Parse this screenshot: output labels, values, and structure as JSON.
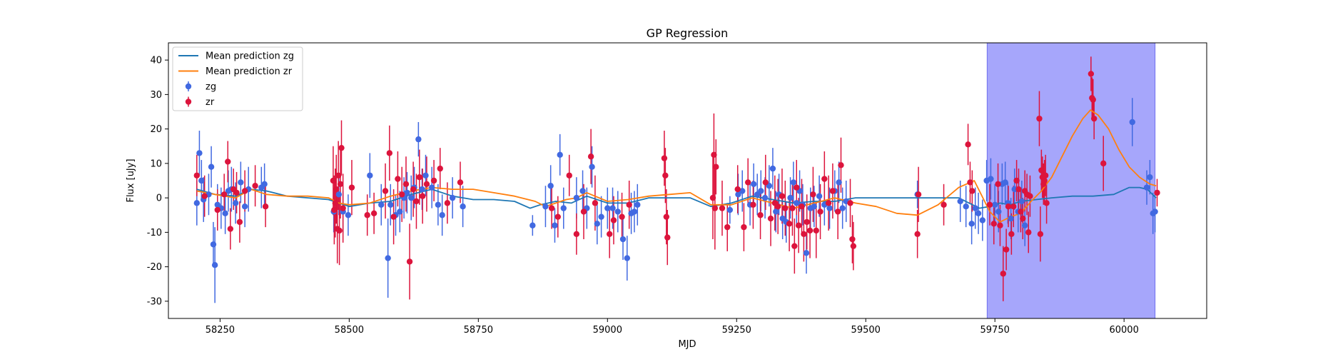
{
  "chart_data": {
    "type": "scatter",
    "title": "GP Regression",
    "xlabel": "MJD",
    "ylabel": "Flux [uJy]",
    "xlim": [
      58150,
      60160
    ],
    "ylim": [
      -35,
      45
    ],
    "xticks": [
      58250,
      58500,
      58750,
      59000,
      59250,
      59500,
      59750,
      60000
    ],
    "yticks": [
      -30,
      -20,
      -10,
      0,
      10,
      20,
      30,
      40
    ],
    "grid": false,
    "legend_position": "top-left",
    "shaded_region": {
      "x_start": 59735,
      "x_end": 60060,
      "color": "#a6a6fb"
    },
    "colors": {
      "zg_line": "#1f77b4",
      "zr_line": "#ff7f0e",
      "zg_points": "#4169e1",
      "zr_points": "#dc143c"
    },
    "legend": [
      {
        "kind": "line",
        "label": "Mean prediction zg",
        "color": "#1f77b4"
      },
      {
        "kind": "line",
        "label": "Mean prediction zr",
        "color": "#ff7f0e"
      },
      {
        "kind": "marker",
        "label": "zg",
        "color": "#4169e1"
      },
      {
        "kind": "marker",
        "label": "zr",
        "color": "#dc143c"
      }
    ],
    "lines": [
      {
        "name": "Mean prediction zg",
        "x": [
          58205,
          58240,
          58280,
          58310,
          58340,
          58380,
          58420,
          58460,
          58500,
          58540,
          58580,
          58620,
          58660,
          58700,
          58740,
          58780,
          58820,
          58850,
          58870,
          58900,
          58930,
          58960,
          59000,
          59040,
          59080,
          59120,
          59160,
          59200,
          59240,
          59280,
          59320,
          59360,
          59400,
          59440,
          59480,
          59520,
          59560,
          59600,
          59640,
          59680,
          59700,
          59720,
          59740,
          59760,
          59780,
          59800,
          59830,
          59860,
          59900,
          59940,
          59980,
          60010,
          60030,
          60045,
          60055,
          60062
        ],
        "y": [
          2.5,
          1.0,
          0.5,
          2.5,
          2.0,
          0.5,
          0.0,
          -0.5,
          -2.5,
          -1.5,
          -1.0,
          1.0,
          2.5,
          0.5,
          -0.5,
          -0.5,
          -1.0,
          -3.0,
          -2.0,
          -1.0,
          -1.5,
          0.5,
          -1.5,
          -1.5,
          0.0,
          0.0,
          0.0,
          -2.5,
          -1.5,
          0.5,
          -0.5,
          -1.5,
          -1.0,
          -1.0,
          0.0,
          0.0,
          0.0,
          0.0,
          0.0,
          0.0,
          -1.5,
          -3.0,
          -2.5,
          -1.5,
          -2.0,
          -1.0,
          -0.5,
          0.0,
          0.5,
          0.5,
          1.0,
          3.0,
          3.0,
          2.5,
          1.0,
          0.0
        ]
      },
      {
        "name": "Mean prediction zr",
        "x": [
          58205,
          58240,
          58280,
          58310,
          58340,
          58380,
          58420,
          58460,
          58480,
          58500,
          58540,
          58580,
          58620,
          58660,
          58700,
          58740,
          58780,
          58820,
          58860,
          58880,
          58900,
          58920,
          58940,
          58960,
          59000,
          59040,
          59080,
          59120,
          59160,
          59200,
          59240,
          59280,
          59320,
          59360,
          59400,
          59440,
          59480,
          59520,
          59560,
          59600,
          59640,
          59680,
          59710,
          59740,
          59760,
          59780,
          59800,
          59820,
          59840,
          59860,
          59880,
          59900,
          59920,
          59935,
          59950,
          59970,
          59990,
          60010,
          60030,
          60050,
          60062
        ],
        "y": [
          2.0,
          1.0,
          0.0,
          2.5,
          1.0,
          0.5,
          0.5,
          0.0,
          -1.5,
          -2.0,
          -1.5,
          0.5,
          2.0,
          3.0,
          2.5,
          2.5,
          1.5,
          0.5,
          -1.0,
          -2.5,
          -1.5,
          -0.5,
          0.0,
          1.5,
          -1.0,
          -0.5,
          0.5,
          1.0,
          1.5,
          -2.0,
          -2.0,
          0.0,
          -1.5,
          -3.0,
          -1.5,
          0.0,
          -1.5,
          -2.5,
          -4.5,
          -5.0,
          -2.0,
          3.0,
          5.0,
          -4.0,
          -7.0,
          -5.5,
          -4.5,
          -1.0,
          2.0,
          6.0,
          12.0,
          18.0,
          23.0,
          25.5,
          24.0,
          20.0,
          14.0,
          9.0,
          6.0,
          4.0,
          3.5
        ]
      }
    ],
    "series": [
      {
        "name": "zg",
        "x": [
          58205,
          58210,
          58214,
          58218,
          58228,
          58233,
          58237,
          58240,
          58245,
          58252,
          58260,
          58266,
          58272,
          58280,
          58290,
          58298,
          58305,
          58330,
          58336,
          58470,
          58480,
          58488,
          58498,
          58540,
          58562,
          58575,
          58580,
          58590,
          58598,
          58606,
          58612,
          58620,
          58626,
          58634,
          58641,
          58648,
          58660,
          58672,
          58680,
          58700,
          58720,
          58855,
          58880,
          58890,
          58898,
          58908,
          58915,
          58940,
          58952,
          58960,
          58970,
          58980,
          58988,
          59000,
          59010,
          59020,
          59030,
          59038,
          59046,
          59052,
          59058,
          59237,
          59253,
          59261,
          59276,
          59283,
          59290,
          59297,
          59305,
          59313,
          59320,
          59326,
          59332,
          59339,
          59346,
          59354,
          59360,
          59366,
          59372,
          59378,
          59385,
          59393,
          59400,
          59410,
          59420,
          59430,
          59440,
          59448,
          59455,
          59462,
          59600,
          59683,
          59694,
          59705,
          59712,
          59718,
          59726,
          59734,
          59742,
          59750,
          59757,
          59764,
          59770,
          59775,
          59781,
          59788,
          59795,
          59802,
          59808,
          60016,
          60044,
          60050,
          60056,
          60060
        ],
        "y": [
          -1.5,
          13.0,
          5.0,
          -0.5,
          1.0,
          9.0,
          -13.5,
          -19.5,
          -2.0,
          -3.0,
          -4.5,
          2.0,
          2.5,
          -1.5,
          4.5,
          -2.5,
          2.5,
          3.0,
          4.0,
          -4.0,
          1.0,
          -4.0,
          -5.0,
          6.5,
          -2.0,
          -17.5,
          -2.0,
          -5.0,
          -4.0,
          0.0,
          1.5,
          0.0,
          3.0,
          17.0,
          2.5,
          6.5,
          3.0,
          -2.0,
          -5.0,
          0.0,
          -2.5,
          -8.0,
          -2.5,
          3.5,
          -8.0,
          12.5,
          -3.0,
          0.0,
          2.0,
          -3.0,
          9.0,
          -7.5,
          -5.5,
          -3.0,
          -3.0,
          -4.0,
          -12.0,
          -17.5,
          -4.5,
          -4.0,
          -2.0,
          -3.5,
          1.0,
          2.0,
          -2.0,
          4.0,
          1.0,
          2.0,
          0.0,
          3.5,
          8.5,
          -4.0,
          1.0,
          -6.0,
          -7.0,
          0.0,
          4.5,
          -1.5,
          2.0,
          -2.0,
          -16.0,
          -3.0,
          -2.5,
          0.5,
          -2.0,
          -3.0,
          2.0,
          4.5,
          -3.0,
          -1.0,
          1.0,
          -1.0,
          -2.5,
          -7.5,
          -3.0,
          -4.5,
          -6.5,
          5.0,
          5.5,
          -2.0,
          -4.0,
          4.0,
          4.5,
          -1.5,
          -6.0,
          2.5,
          -4.0,
          -1.0,
          -8.0,
          22.0,
          3.0,
          6.0,
          -4.5,
          -4.0
        ],
        "error": [
          6.5,
          6.5,
          6.0,
          6.5,
          6.0,
          6.0,
          6.5,
          11.0,
          6.0,
          6.0,
          6.0,
          6.0,
          6.5,
          6.0,
          6.0,
          6.0,
          6.5,
          6.0,
          6.0,
          6.0,
          6.0,
          6.0,
          6.0,
          6.5,
          6.0,
          11.5,
          6.0,
          6.0,
          6.0,
          6.0,
          6.0,
          6.5,
          6.0,
          5.0,
          6.0,
          6.0,
          6.0,
          6.0,
          6.0,
          6.0,
          6.0,
          3.0,
          6.0,
          6.0,
          5.0,
          6.0,
          6.0,
          6.0,
          6.0,
          6.0,
          6.0,
          6.0,
          6.0,
          6.0,
          6.0,
          6.0,
          6.0,
          6.5,
          6.0,
          6.0,
          6.0,
          4.0,
          6.0,
          6.0,
          6.0,
          6.0,
          6.0,
          6.0,
          6.0,
          6.0,
          6.0,
          6.0,
          6.0,
          6.0,
          6.0,
          6.0,
          6.0,
          6.0,
          6.0,
          6.0,
          6.0,
          6.0,
          6.0,
          6.0,
          6.0,
          6.0,
          6.0,
          6.0,
          6.0,
          6.0,
          4.0,
          6.0,
          6.0,
          6.0,
          6.0,
          6.0,
          6.0,
          6.0,
          6.0,
          6.0,
          6.0,
          6.0,
          6.0,
          6.0,
          6.0,
          6.0,
          6.0,
          6.0,
          6.0,
          7.0,
          5.0,
          5.0,
          6.0,
          6.0
        ]
      },
      {
        "name": "zr",
        "x": [
          58205,
          58220,
          58245,
          58258,
          58265,
          58270,
          58276,
          58282,
          58288,
          58298,
          58318,
          58338,
          58469,
          58471,
          58473,
          58475,
          58477,
          58479,
          58481,
          58483,
          58485,
          58488,
          58505,
          58535,
          58548,
          58570,
          58578,
          58586,
          58594,
          58602,
          58610,
          58617,
          58624,
          58630,
          58636,
          58642,
          58650,
          58664,
          58676,
          58690,
          58715,
          58892,
          58904,
          58926,
          58940,
          58954,
          58968,
          58976,
          59004,
          59012,
          59028,
          59042,
          59110,
          59112,
          59114,
          59116,
          59204,
          59206,
          59208,
          59210,
          59222,
          59232,
          59252,
          59264,
          59272,
          59282,
          59296,
          59306,
          59316,
          59324,
          59330,
          59338,
          59344,
          59352,
          59358,
          59362,
          59366,
          59370,
          59376,
          59380,
          59386,
          59392,
          59398,
          59404,
          59412,
          59420,
          59428,
          59436,
          59446,
          59452,
          59470,
          59474,
          59476,
          59600,
          59602,
          59651,
          59698,
          59702,
          59706,
          59740,
          59748,
          59756,
          59760,
          59766,
          59772,
          59776,
          59782,
          59786,
          59792,
          59796,
          59800,
          59804,
          59808,
          59812,
          59815,
          59818,
          59836,
          59838,
          59840,
          59842,
          59844,
          59846,
          59848,
          59850,
          59936,
          59938,
          59940,
          59942,
          59960,
          60064
        ],
        "y": [
          6.5,
          0.5,
          -3.5,
          1.0,
          10.5,
          -9.0,
          2.5,
          1.5,
          -7.0,
          2.0,
          3.5,
          -2.5,
          5.0,
          -3.5,
          -1.5,
          2.5,
          -9.0,
          6.5,
          -9.5,
          4.0,
          14.5,
          -3.0,
          3.0,
          -5.0,
          -4.5,
          2.0,
          13.0,
          -5.5,
          5.5,
          1.0,
          4.0,
          -18.5,
          2.5,
          -1.0,
          6.0,
          0.5,
          4.0,
          5.0,
          8.5,
          -1.5,
          4.5,
          -3.0,
          -5.5,
          6.5,
          -10.5,
          -4.0,
          12.0,
          -1.5,
          -10.5,
          -6.5,
          -5.5,
          -2.0,
          11.5,
          6.5,
          -5.5,
          -11.5,
          0.0,
          12.5,
          -3.0,
          9.0,
          -3.0,
          -8.5,
          2.5,
          -8.5,
          4.5,
          -2.0,
          -5.0,
          4.5,
          -6.0,
          -1.5,
          -2.5,
          0.5,
          -3.0,
          -7.5,
          -3.0,
          -14.0,
          3.0,
          -8.0,
          -2.5,
          -10.5,
          -7.0,
          -9.5,
          1.0,
          -9.5,
          -4.0,
          5.5,
          -1.5,
          2.0,
          -4.0,
          9.5,
          -1.5,
          -12.0,
          -14.0,
          -10.5,
          1.0,
          -2.0,
          15.5,
          4.5,
          2.0,
          -2.0,
          -7.5,
          4.0,
          -8.0,
          -22.0,
          -15.0,
          -2.5,
          -10.5,
          -2.5,
          5.0,
          2.5,
          -4.0,
          -6.0,
          2.0,
          1.0,
          -10.0,
          0.5,
          23.0,
          -10.5,
          8.0,
          6.0,
          4.0,
          5.0,
          6.5,
          -1.5,
          36.0,
          29.0,
          28.5,
          23.0,
          10.0,
          1.5
        ],
        "error": [
          6.0,
          6.0,
          6.0,
          6.0,
          6.0,
          6.0,
          6.0,
          6.0,
          6.0,
          6.0,
          6.0,
          6.0,
          10.0,
          10.0,
          10.0,
          10.0,
          10.0,
          10.0,
          10.0,
          10.0,
          8.0,
          10.0,
          8.0,
          6.0,
          6.0,
          8.0,
          8.0,
          8.0,
          8.0,
          8.0,
          8.0,
          11.0,
          8.0,
          8.0,
          8.0,
          8.0,
          8.0,
          6.0,
          6.0,
          6.0,
          6.0,
          6.0,
          6.0,
          6.0,
          6.0,
          8.0,
          8.0,
          8.0,
          7.0,
          7.0,
          7.0,
          7.0,
          8.0,
          8.0,
          8.0,
          8.0,
          12.0,
          12.0,
          12.0,
          8.0,
          8.0,
          7.0,
          7.0,
          7.0,
          7.0,
          7.0,
          7.0,
          8.0,
          8.0,
          8.0,
          8.0,
          8.0,
          8.0,
          8.0,
          8.0,
          8.0,
          8.0,
          8.0,
          8.0,
          8.0,
          8.0,
          8.0,
          8.0,
          8.0,
          8.0,
          8.0,
          8.0,
          8.0,
          8.0,
          8.0,
          7.0,
          7.0,
          7.0,
          7.0,
          8.0,
          6.0,
          6.0,
          6.0,
          6.0,
          6.0,
          6.0,
          6.0,
          6.0,
          8.0,
          6.0,
          6.0,
          6.0,
          6.0,
          6.0,
          6.0,
          6.0,
          6.0,
          6.0,
          6.0,
          6.0,
          6.0,
          8.0,
          8.0,
          6.0,
          6.0,
          6.0,
          6.0,
          6.0,
          6.0,
          5.0,
          6.0,
          6.0,
          6.0,
          8.0,
          4.0
        ]
      }
    ]
  }
}
